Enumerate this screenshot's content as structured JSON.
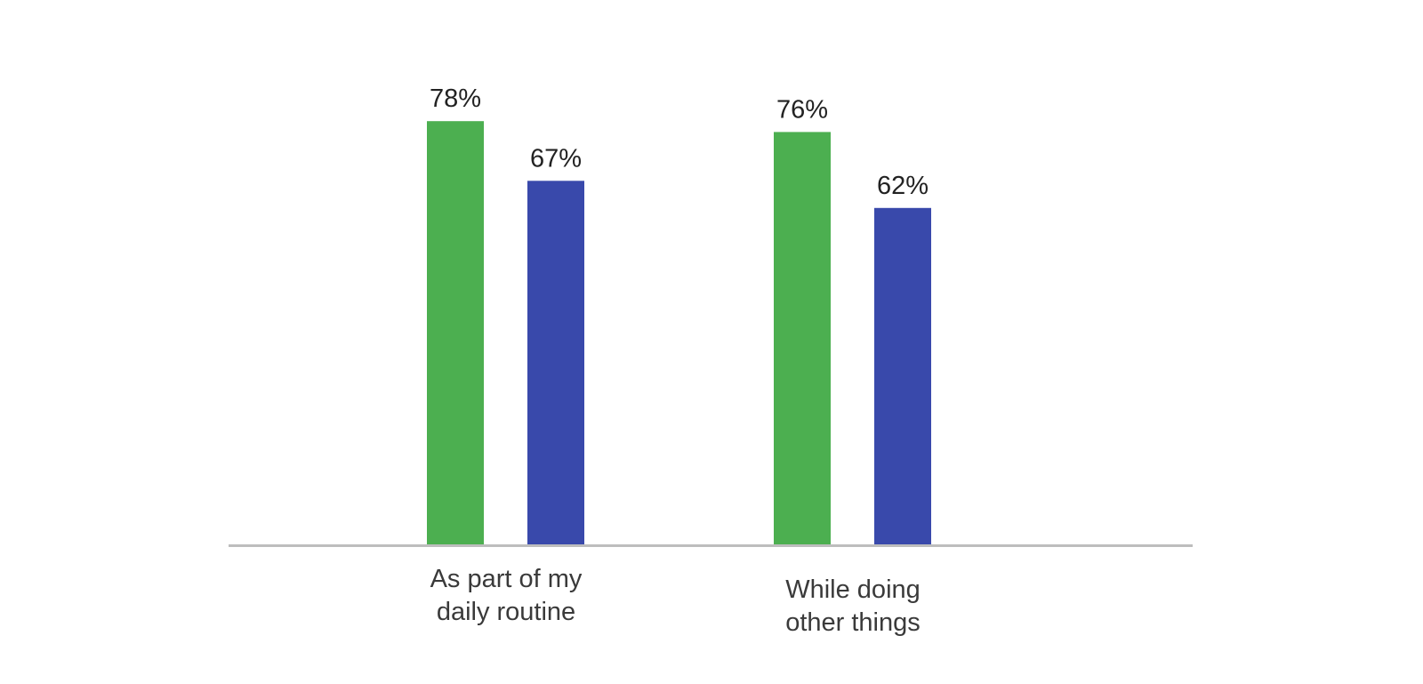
{
  "chart_data": {
    "type": "bar",
    "categories": [
      [
        "As part of my",
        "daily routine"
      ],
      [
        "While doing",
        "other things"
      ]
    ],
    "series": [
      {
        "values": [
          78,
          76
        ],
        "labels": [
          "78%",
          "76%"
        ],
        "color": "#4caf50"
      },
      {
        "values": [
          67,
          62
        ],
        "labels": [
          "67%",
          "62%"
        ],
        "color": "#3949ab"
      }
    ],
    "ylim": [
      0,
      100
    ],
    "grid": false,
    "legend": "none",
    "baseline_color": "#bdbdbd"
  }
}
